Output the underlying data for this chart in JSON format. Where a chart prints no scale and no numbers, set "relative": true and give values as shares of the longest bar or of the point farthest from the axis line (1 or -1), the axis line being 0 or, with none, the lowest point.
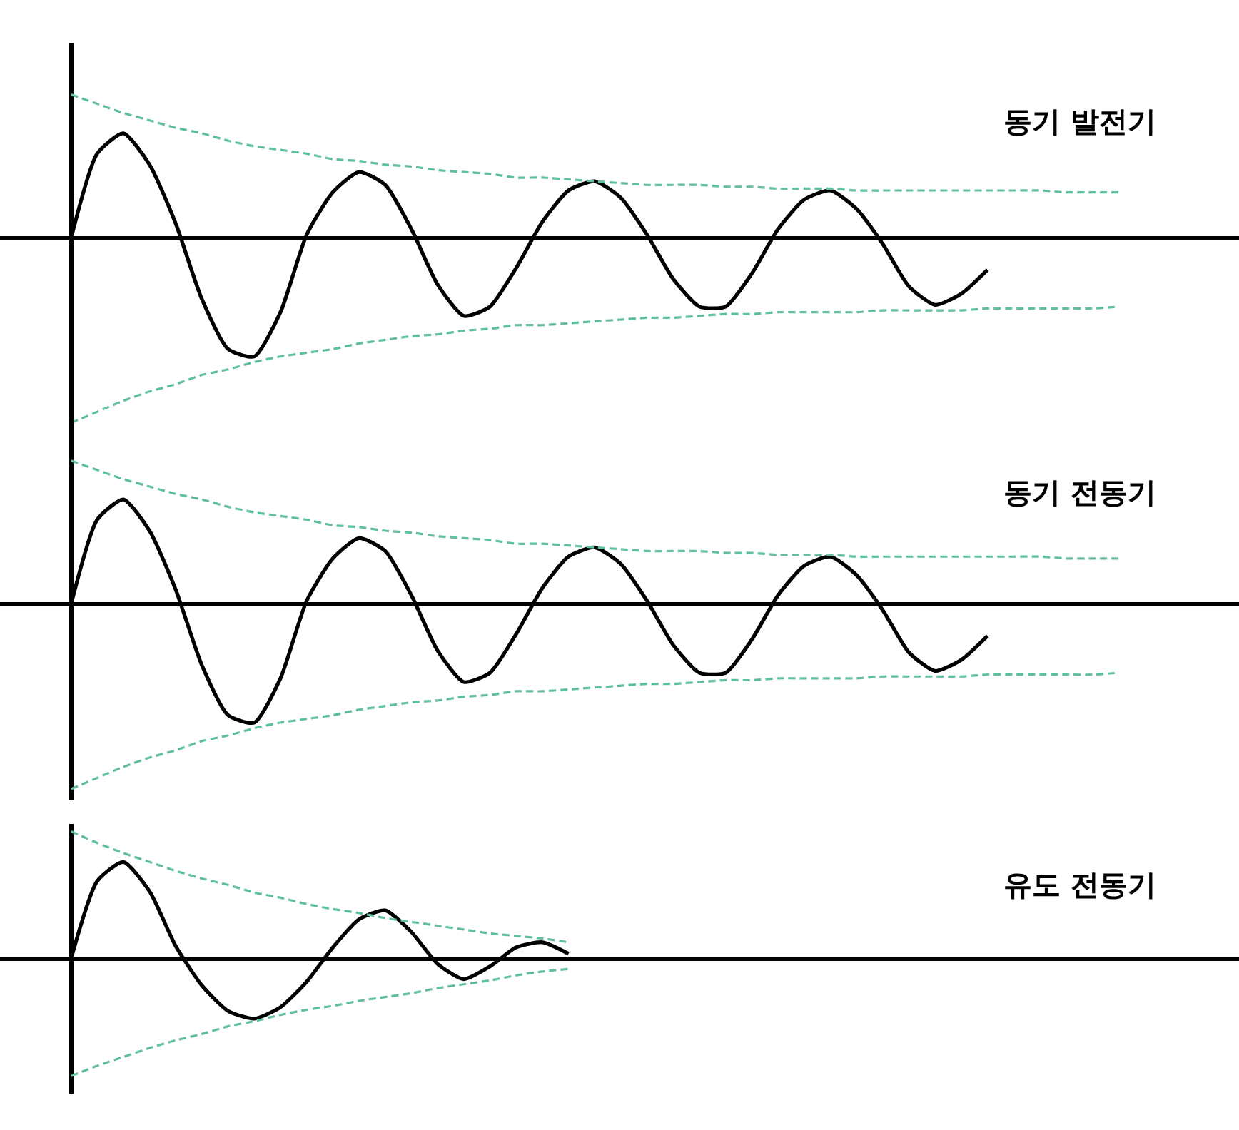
{
  "chart_data": [
    {
      "type": "line",
      "title": "동기 발전기",
      "relative": true,
      "tick_labels": false,
      "categories": [
        null,
        null,
        null,
        null,
        null,
        null,
        null,
        null,
        null,
        null,
        null,
        null,
        null,
        null,
        null,
        null,
        null,
        null,
        null,
        null,
        null,
        null,
        null,
        null,
        null,
        null,
        null,
        null,
        null,
        null,
        null,
        null,
        null,
        null,
        null,
        null,
        null,
        null,
        null,
        null,
        null
      ],
      "series": [
        {
          "color": "#000000",
          "line_style": "solid",
          "values": [
            0,
            0.46,
            0.57,
            0.4,
            0.08,
            -0.33,
            -0.6,
            -0.64,
            -0.4,
            0.02,
            0.25,
            0.36,
            0.29,
            0.05,
            -0.25,
            -0.42,
            -0.37,
            -0.16,
            0.09,
            0.26,
            0.31,
            0.22,
            0.02,
            -0.22,
            -0.37,
            -0.37,
            -0.19,
            0.05,
            0.21,
            0.26,
            0.16,
            -0.03,
            -0.26,
            -0.36,
            -0.3,
            -0.17,
            null,
            null,
            null,
            null,
            null
          ]
        },
        {
          "color": "#5fbf9f",
          "line_style": "dashed",
          "values": [
            0.78,
            0.73,
            0.68,
            0.64,
            0.6,
            0.57,
            0.53,
            0.5,
            0.48,
            0.46,
            0.43,
            0.42,
            0.4,
            0.39,
            0.37,
            0.36,
            0.35,
            0.33,
            0.33,
            0.32,
            0.31,
            0.3,
            0.29,
            0.29,
            0.29,
            0.28,
            0.28,
            0.27,
            0.27,
            0.27,
            0.26,
            0.26,
            0.26,
            0.26,
            0.26,
            0.26,
            0.26,
            0.26,
            0.25,
            0.25,
            0.25
          ]
        },
        {
          "color": "#5fbf9f",
          "line_style": "dashed",
          "values": [
            -1,
            -0.94,
            -0.88,
            -0.83,
            -0.79,
            -0.74,
            -0.71,
            -0.67,
            -0.64,
            -0.62,
            -0.6,
            -0.57,
            -0.55,
            -0.53,
            -0.52,
            -0.5,
            -0.49,
            -0.47,
            -0.47,
            -0.46,
            -0.45,
            -0.44,
            -0.43,
            -0.43,
            -0.42,
            -0.41,
            -0.41,
            -0.4,
            -0.4,
            -0.4,
            -0.4,
            -0.39,
            -0.39,
            -0.39,
            -0.39,
            -0.38,
            -0.38,
            -0.38,
            -0.38,
            -0.38,
            -0.37
          ]
        }
      ]
    },
    {
      "type": "line",
      "title": "동기 전동기",
      "relative": true,
      "tick_labels": false,
      "categories": [
        null,
        null,
        null,
        null,
        null,
        null,
        null,
        null,
        null,
        null,
        null,
        null,
        null,
        null,
        null,
        null,
        null,
        null,
        null,
        null,
        null,
        null,
        null,
        null,
        null,
        null,
        null,
        null,
        null,
        null,
        null,
        null,
        null,
        null,
        null,
        null,
        null,
        null,
        null,
        null,
        null
      ],
      "series": [
        {
          "color": "#000000",
          "line_style": "solid",
          "values": [
            0,
            0.46,
            0.57,
            0.4,
            0.08,
            -0.33,
            -0.6,
            -0.64,
            -0.4,
            0.02,
            0.25,
            0.36,
            0.29,
            0.05,
            -0.25,
            -0.42,
            -0.37,
            -0.16,
            0.09,
            0.26,
            0.31,
            0.22,
            0.02,
            -0.22,
            -0.37,
            -0.37,
            -0.19,
            0.05,
            0.21,
            0.26,
            0.16,
            -0.03,
            -0.26,
            -0.36,
            -0.3,
            -0.17,
            null,
            null,
            null,
            null,
            null
          ]
        },
        {
          "color": "#5fbf9f",
          "line_style": "dashed",
          "values": [
            0.78,
            0.73,
            0.68,
            0.64,
            0.6,
            0.57,
            0.53,
            0.5,
            0.48,
            0.46,
            0.43,
            0.42,
            0.4,
            0.39,
            0.37,
            0.36,
            0.35,
            0.33,
            0.33,
            0.32,
            0.31,
            0.3,
            0.29,
            0.29,
            0.29,
            0.28,
            0.28,
            0.27,
            0.27,
            0.27,
            0.26,
            0.26,
            0.26,
            0.26,
            0.26,
            0.26,
            0.26,
            0.26,
            0.25,
            0.25,
            0.25
          ]
        },
        {
          "color": "#5fbf9f",
          "line_style": "dashed",
          "values": [
            -1,
            -0.94,
            -0.88,
            -0.83,
            -0.79,
            -0.74,
            -0.71,
            -0.67,
            -0.64,
            -0.62,
            -0.6,
            -0.57,
            -0.55,
            -0.53,
            -0.52,
            -0.5,
            -0.49,
            -0.47,
            -0.47,
            -0.46,
            -0.45,
            -0.44,
            -0.43,
            -0.43,
            -0.42,
            -0.41,
            -0.41,
            -0.4,
            -0.4,
            -0.4,
            -0.4,
            -0.39,
            -0.39,
            -0.39,
            -0.39,
            -0.38,
            -0.38,
            -0.38,
            -0.38,
            -0.38,
            -0.37
          ]
        }
      ]
    },
    {
      "type": "line",
      "title": "유도 전동기",
      "relative": true,
      "tick_labels": false,
      "categories": [
        null,
        null,
        null,
        null,
        null,
        null,
        null,
        null,
        null,
        null,
        null,
        null,
        null,
        null,
        null,
        null,
        null,
        null,
        null,
        null,
        null,
        null,
        null,
        null,
        null,
        null,
        null,
        null,
        null,
        null,
        null,
        null,
        null,
        null,
        null,
        null,
        null,
        null,
        null,
        null,
        null
      ],
      "series": [
        {
          "color": "#000000",
          "line_style": "solid",
          "values": [
            0,
            0.61,
            0.76,
            0.53,
            0.1,
            -0.21,
            -0.41,
            -0.47,
            -0.38,
            -0.18,
            0.09,
            0.31,
            0.38,
            0.21,
            -0.04,
            -0.16,
            -0.06,
            0.09,
            0.13,
            0.04,
            null,
            null,
            null,
            null,
            null,
            null,
            null,
            null,
            null,
            null,
            null,
            null,
            null,
            null,
            null,
            null,
            null,
            null,
            null,
            null,
            null
          ]
        },
        {
          "color": "#5fbf9f",
          "line_style": "dashed",
          "values": [
            1,
            0.91,
            0.83,
            0.76,
            0.69,
            0.63,
            0.58,
            0.52,
            0.48,
            0.43,
            0.39,
            0.36,
            0.32,
            0.29,
            0.26,
            0.23,
            0.2,
            0.18,
            0.16,
            0.13,
            null,
            null,
            null,
            null,
            null,
            null,
            null,
            null,
            null,
            null,
            null,
            null,
            null,
            null,
            null,
            null,
            null,
            null,
            null,
            null,
            null
          ]
        },
        {
          "color": "#5fbf9f",
          "line_style": "dashed",
          "values": [
            -0.92,
            -0.84,
            -0.77,
            -0.7,
            -0.64,
            -0.59,
            -0.53,
            -0.49,
            -0.44,
            -0.4,
            -0.37,
            -0.33,
            -0.3,
            -0.27,
            -0.23,
            -0.2,
            -0.17,
            -0.13,
            -0.1,
            -0.08,
            null,
            null,
            null,
            null,
            null,
            null,
            null,
            null,
            null,
            null,
            null,
            null,
            null,
            null,
            null,
            null,
            null,
            null,
            null,
            null,
            null
          ]
        }
      ]
    }
  ]
}
